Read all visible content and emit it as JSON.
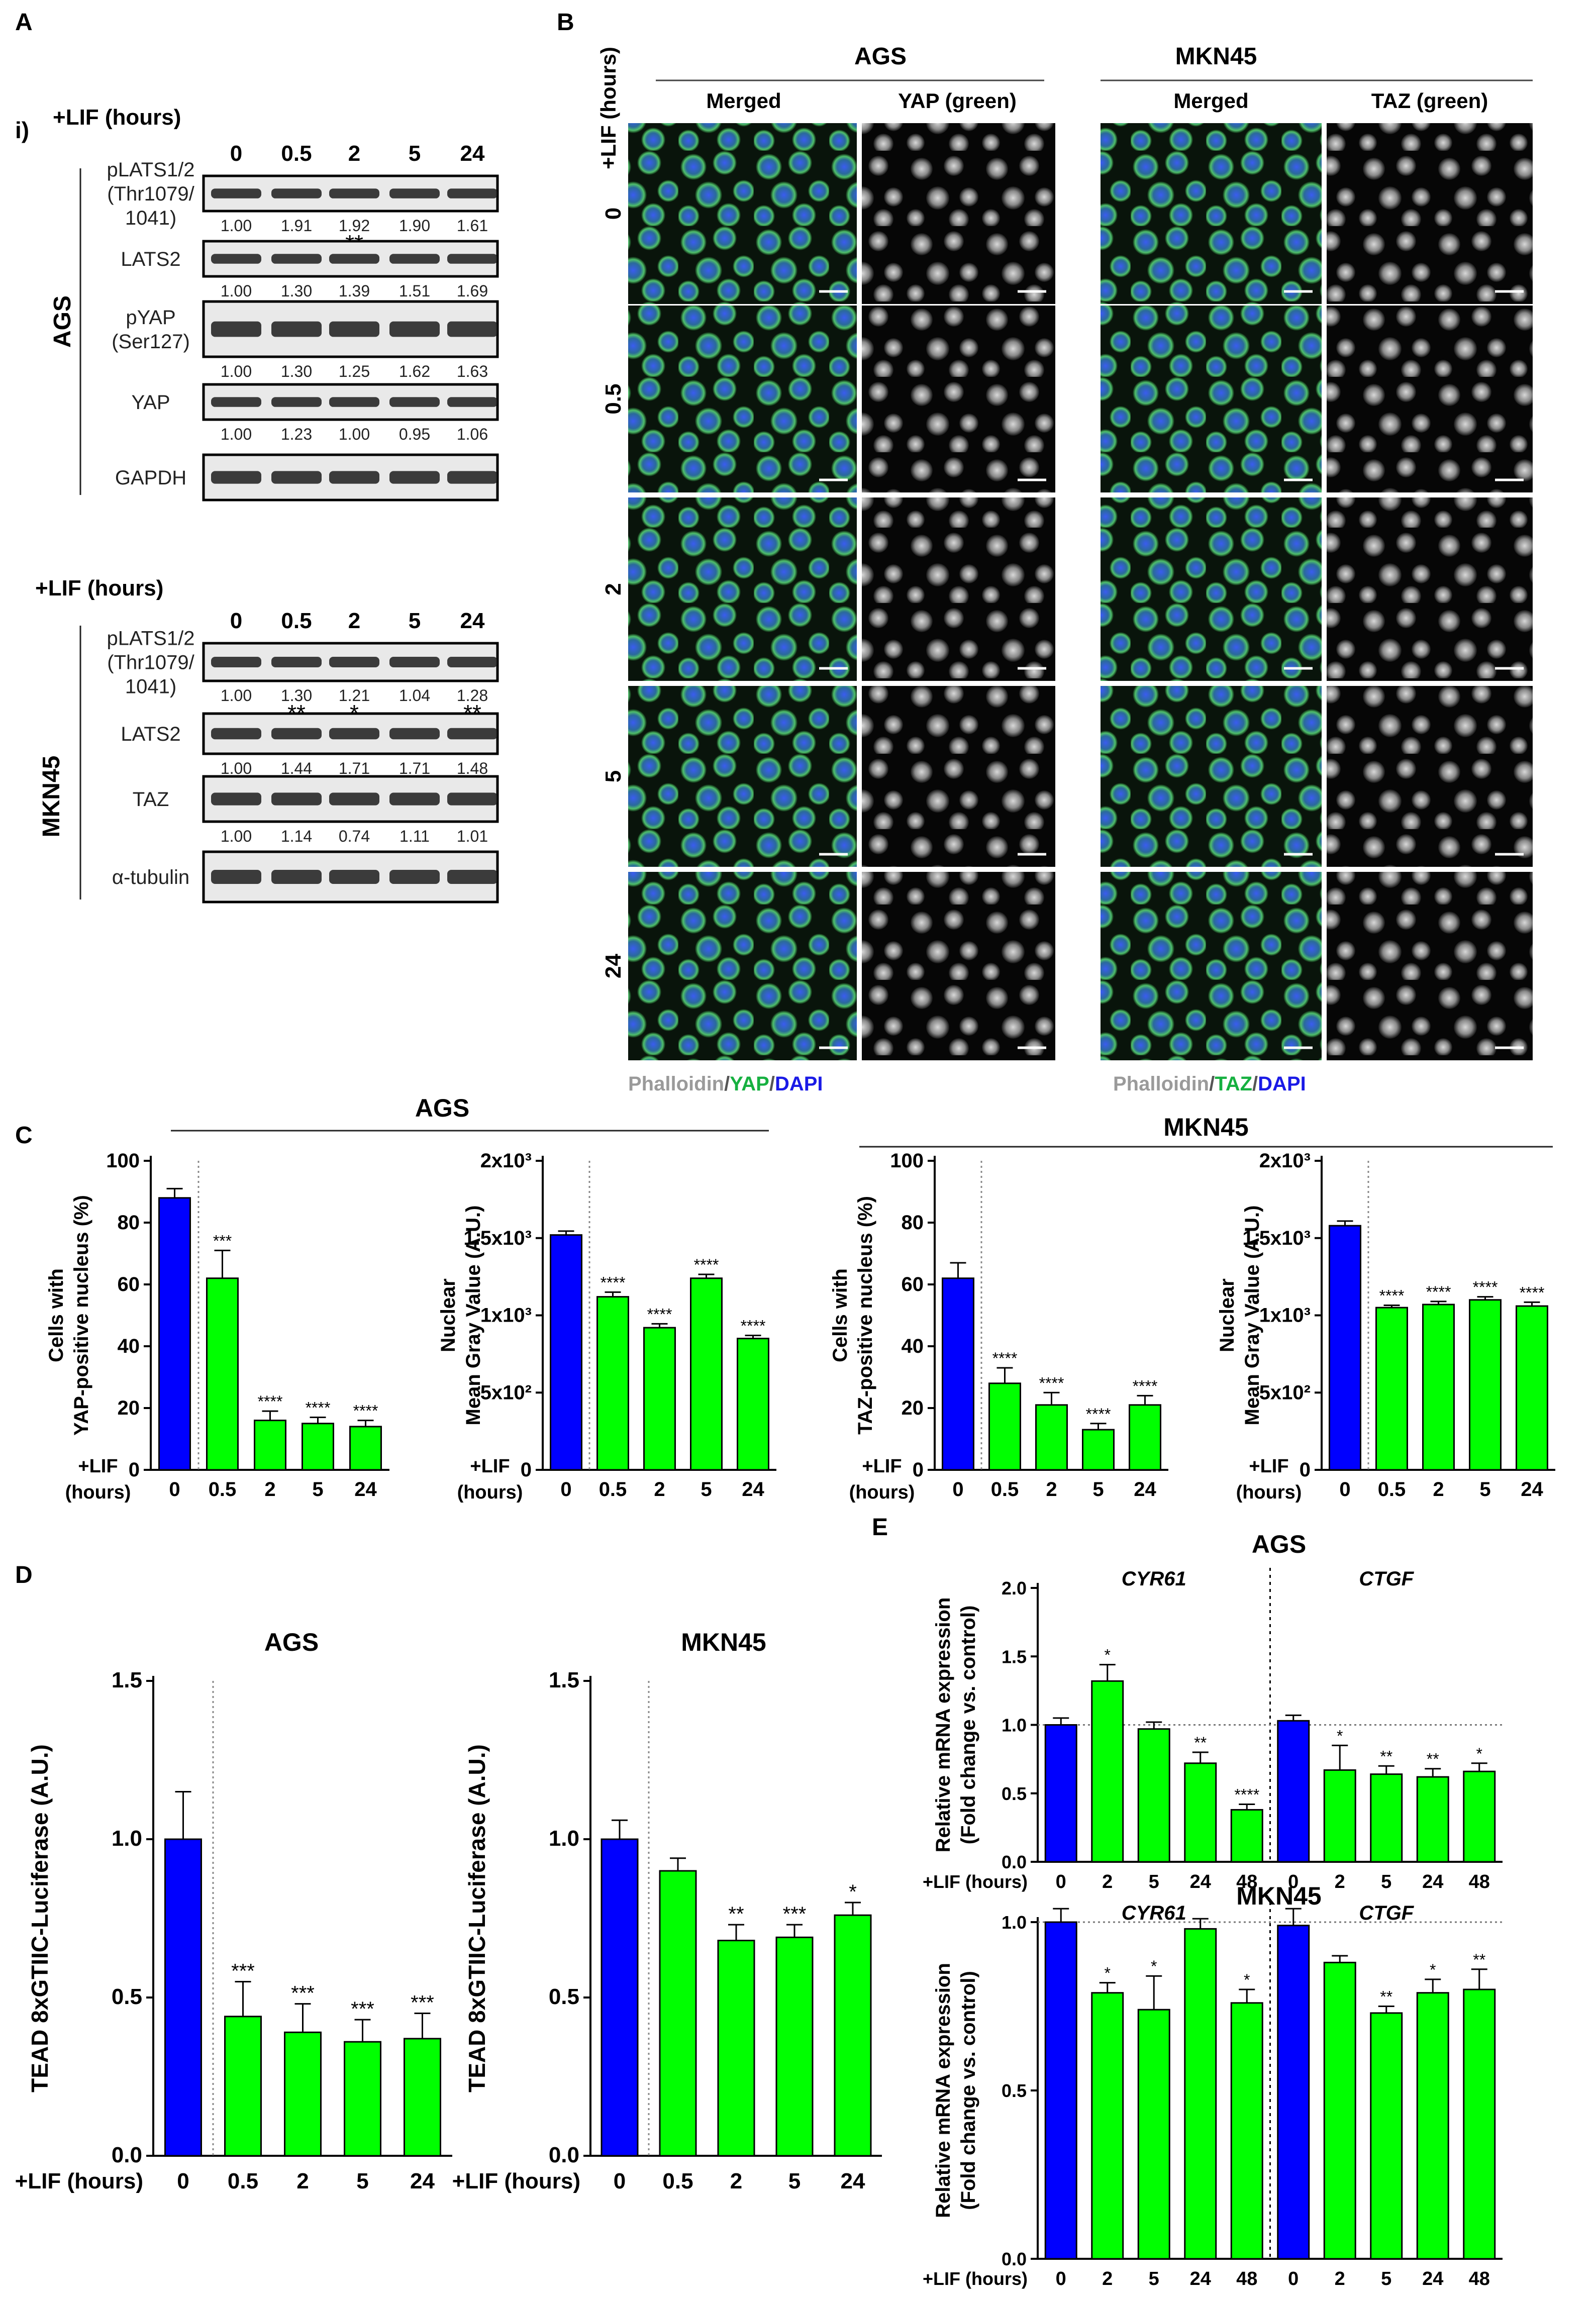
{
  "panel_labels": {
    "A": "A",
    "B": "B",
    "C": "C",
    "D": "D",
    "E": "E"
  },
  "panel_A": {
    "sub": "i)",
    "cell_line_1": "AGS",
    "cell_line_2": "MKN45",
    "time_header": "+LIF (hours)",
    "times": [
      "0",
      "0.5",
      "2",
      "5",
      "24"
    ],
    "ags_blots": [
      {
        "label_lines": [
          "pLATS1/2",
          "(Thr1079/",
          "1041)"
        ],
        "values": [
          "1.00",
          "1.91",
          "1.92",
          "1.90",
          "1.61"
        ],
        "sig": [
          "",
          "",
          "**",
          "",
          ""
        ]
      },
      {
        "label_lines": [
          "LATS2"
        ],
        "values": [
          "1.00",
          "1.30",
          "1.39",
          "1.51",
          "1.69"
        ],
        "sig": [
          "",
          "",
          "",
          "",
          ""
        ]
      },
      {
        "label_lines": [
          "pYAP",
          "(Ser127)"
        ],
        "values": [
          "1.00",
          "1.30",
          "1.25",
          "1.62",
          "1.63"
        ],
        "sig": [
          "",
          "",
          "",
          "",
          ""
        ]
      },
      {
        "label_lines": [
          "YAP"
        ],
        "values": [
          "1.00",
          "1.23",
          "1.00",
          "0.95",
          "1.06"
        ],
        "sig": [
          "",
          "",
          "",
          "",
          ""
        ]
      },
      {
        "label_lines": [
          "GAPDH"
        ],
        "values": [],
        "sig": []
      }
    ],
    "mkn_blots": [
      {
        "label_lines": [
          "pLATS1/2",
          "(Thr1079/",
          "1041)"
        ],
        "values": [
          "1.00",
          "1.30",
          "1.21",
          "1.04",
          "1.28"
        ],
        "sig": [
          "",
          "**",
          "*",
          "",
          "**"
        ]
      },
      {
        "label_lines": [
          "LATS2"
        ],
        "values": [
          "1.00",
          "1.44",
          "1.71",
          "1.71",
          "1.48"
        ],
        "sig": [
          "",
          "",
          "",
          "",
          ""
        ]
      },
      {
        "label_lines": [
          "TAZ"
        ],
        "values": [
          "1.00",
          "1.14",
          "0.74",
          "1.11",
          "1.01"
        ],
        "sig": [
          "",
          "",
          "",
          "",
          ""
        ]
      },
      {
        "label_lines": [
          "α-tubulin"
        ],
        "values": [],
        "sig": []
      }
    ]
  },
  "panel_B": {
    "header_left": "AGS",
    "header_right": "MKN45",
    "col_labels": [
      "Merged",
      "YAP (green)",
      "Merged",
      "TAZ (green)"
    ],
    "row_header": "+LIF (hours)",
    "rows": [
      "0",
      "0.5",
      "2",
      "5",
      "24"
    ],
    "legend_left": {
      "a": "Phalloidin",
      "s1": "/",
      "b": "YAP",
      "s2": "/",
      "c": "DAPI"
    },
    "legend_right": {
      "a": "Phalloidin",
      "s1": "/",
      "b": "TAZ",
      "s2": "/",
      "c": "DAPI"
    }
  },
  "colors": {
    "control": "#0000ff",
    "lif": "#00ff00",
    "phalloidin": "#9a9a9a",
    "green": "#16b040",
    "dapi": "#1a1ae6"
  },
  "chart_data": [
    {
      "id": "C1",
      "type": "bar",
      "group": "AGS",
      "categories": [
        "0",
        "0.5",
        "2",
        "5",
        "24"
      ],
      "values": [
        88,
        62,
        16,
        15,
        14
      ],
      "errors": [
        3,
        9,
        3,
        2,
        2
      ],
      "sig": [
        "",
        "***",
        "****",
        "****",
        "****"
      ],
      "ylabel": [
        "Cells with",
        "YAP-positive nucleus (%)"
      ],
      "ylim": [
        0,
        100
      ],
      "yticks": [
        "0",
        "20",
        "40",
        "60",
        "80",
        "100"
      ],
      "xlabel": [
        "+LIF",
        "(hours)"
      ]
    },
    {
      "id": "C2",
      "type": "bar",
      "group": "AGS",
      "categories": [
        "0",
        "0.5",
        "2",
        "5",
        "24"
      ],
      "values": [
        1520,
        1120,
        920,
        1240,
        850
      ],
      "errors": [
        25,
        30,
        25,
        25,
        20
      ],
      "sig": [
        "",
        "****",
        "****",
        "****",
        "****"
      ],
      "ylabel": [
        "Nuclear",
        "Mean Gray Value (A.U.)"
      ],
      "ylim": [
        0,
        2000
      ],
      "yticks": [
        "0",
        "5x10²",
        "1x10³",
        "1.5x10³",
        "2x10³"
      ],
      "xlabel": [
        "+LIF",
        "(hours)"
      ]
    },
    {
      "id": "C3",
      "type": "bar",
      "group": "MKN45",
      "categories": [
        "0",
        "0.5",
        "2",
        "5",
        "24"
      ],
      "values": [
        62,
        28,
        21,
        13,
        21
      ],
      "errors": [
        5,
        5,
        4,
        2,
        3
      ],
      "sig": [
        "",
        "****",
        "****",
        "****",
        "****"
      ],
      "ylabel": [
        "Cells with",
        "TAZ-positive nucleus (%)"
      ],
      "ylim": [
        0,
        100
      ],
      "yticks": [
        "0",
        "20",
        "40",
        "60",
        "80",
        "100"
      ],
      "xlabel": [
        "+LIF",
        "(hours)"
      ]
    },
    {
      "id": "C4",
      "type": "bar",
      "group": "MKN45",
      "categories": [
        "0",
        "0.5",
        "2",
        "5",
        "24"
      ],
      "values": [
        1580,
        1050,
        1070,
        1100,
        1060
      ],
      "errors": [
        30,
        15,
        20,
        20,
        25
      ],
      "sig": [
        "",
        "****",
        "****",
        "****",
        "****"
      ],
      "ylabel": [
        "Nuclear",
        "Mean Gray Value (A.U.)"
      ],
      "ylim": [
        0,
        2000
      ],
      "yticks": [
        "0",
        "5x10²",
        "1x10³",
        "1.5x10³",
        "2x10³"
      ],
      "xlabel": [
        "+LIF",
        "(hours)"
      ]
    },
    {
      "id": "D1",
      "type": "bar",
      "title": "AGS",
      "categories": [
        "0",
        "0.5",
        "2",
        "5",
        "24"
      ],
      "values": [
        1.0,
        0.44,
        0.39,
        0.36,
        0.37
      ],
      "errors": [
        0.15,
        0.11,
        0.09,
        0.07,
        0.08
      ],
      "sig": [
        "",
        "***",
        "***",
        "***",
        "***"
      ],
      "ylabel": [
        "TEAD 8xGTIIC-Luciferase (A.U.)"
      ],
      "ylim": [
        0,
        1.5
      ],
      "yticks": [
        "0.0",
        "0.5",
        "1.0",
        "1.5"
      ],
      "xlabel": [
        "+LIF (hours)"
      ]
    },
    {
      "id": "D2",
      "type": "bar",
      "title": "MKN45",
      "categories": [
        "0",
        "0.5",
        "2",
        "5",
        "24"
      ],
      "values": [
        1.0,
        0.9,
        0.68,
        0.69,
        0.76
      ],
      "errors": [
        0.06,
        0.04,
        0.05,
        0.04,
        0.04
      ],
      "sig": [
        "",
        "",
        "**",
        "***",
        "*"
      ],
      "ylabel": [
        "TEAD 8xGTIIC-Luciferase (A.U.)"
      ],
      "ylim": [
        0,
        1.5
      ],
      "yticks": [
        "0.0",
        "0.5",
        "1.0",
        "1.5"
      ],
      "xlabel": [
        "+LIF (hours)"
      ]
    },
    {
      "id": "E1",
      "type": "bar",
      "title": "AGS",
      "gene_labels": [
        "CYR61",
        "CTGF"
      ],
      "categories": [
        "0",
        "2",
        "5",
        "24",
        "48",
        "0",
        "2",
        "5",
        "24",
        "48"
      ],
      "values": [
        1.0,
        1.32,
        0.97,
        0.72,
        0.38,
        1.03,
        0.67,
        0.64,
        0.62,
        0.66
      ],
      "errors": [
        0.05,
        0.12,
        0.05,
        0.08,
        0.04,
        0.04,
        0.18,
        0.06,
        0.06,
        0.06
      ],
      "sig": [
        "",
        "*",
        "",
        "**",
        "****",
        "",
        "*",
        "**",
        "**",
        "*"
      ],
      "ylabel": [
        "Relative mRNA expression",
        "(Fold change vs. control)"
      ],
      "ylim": [
        0,
        2.0
      ],
      "yticks": [
        "0.0",
        "0.5",
        "1.0",
        "1.5",
        "2.0"
      ],
      "xlabel": [
        "+LIF (hours)"
      ]
    },
    {
      "id": "E2",
      "type": "bar",
      "title": "MKN45",
      "gene_labels": [
        "CYR61",
        "CTGF"
      ],
      "categories": [
        "0",
        "2",
        "5",
        "24",
        "48",
        "0",
        "2",
        "5",
        "24",
        "48"
      ],
      "values": [
        1.0,
        0.79,
        0.74,
        0.98,
        0.76,
        0.99,
        0.88,
        0.73,
        0.79,
        0.8
      ],
      "errors": [
        0.04,
        0.03,
        0.1,
        0.03,
        0.04,
        0.05,
        0.02,
        0.02,
        0.04,
        0.06
      ],
      "sig": [
        "",
        "*",
        "*",
        "",
        "*",
        "",
        "",
        "**",
        "*",
        "**"
      ],
      "ylabel": [
        "Relative mRNA expression",
        "(Fold change vs. control)"
      ],
      "ylim": [
        0,
        1.0
      ],
      "yticks": [
        "0.0",
        "0.5",
        "1.0"
      ],
      "xlabel": [
        "+LIF (hours)"
      ]
    }
  ]
}
